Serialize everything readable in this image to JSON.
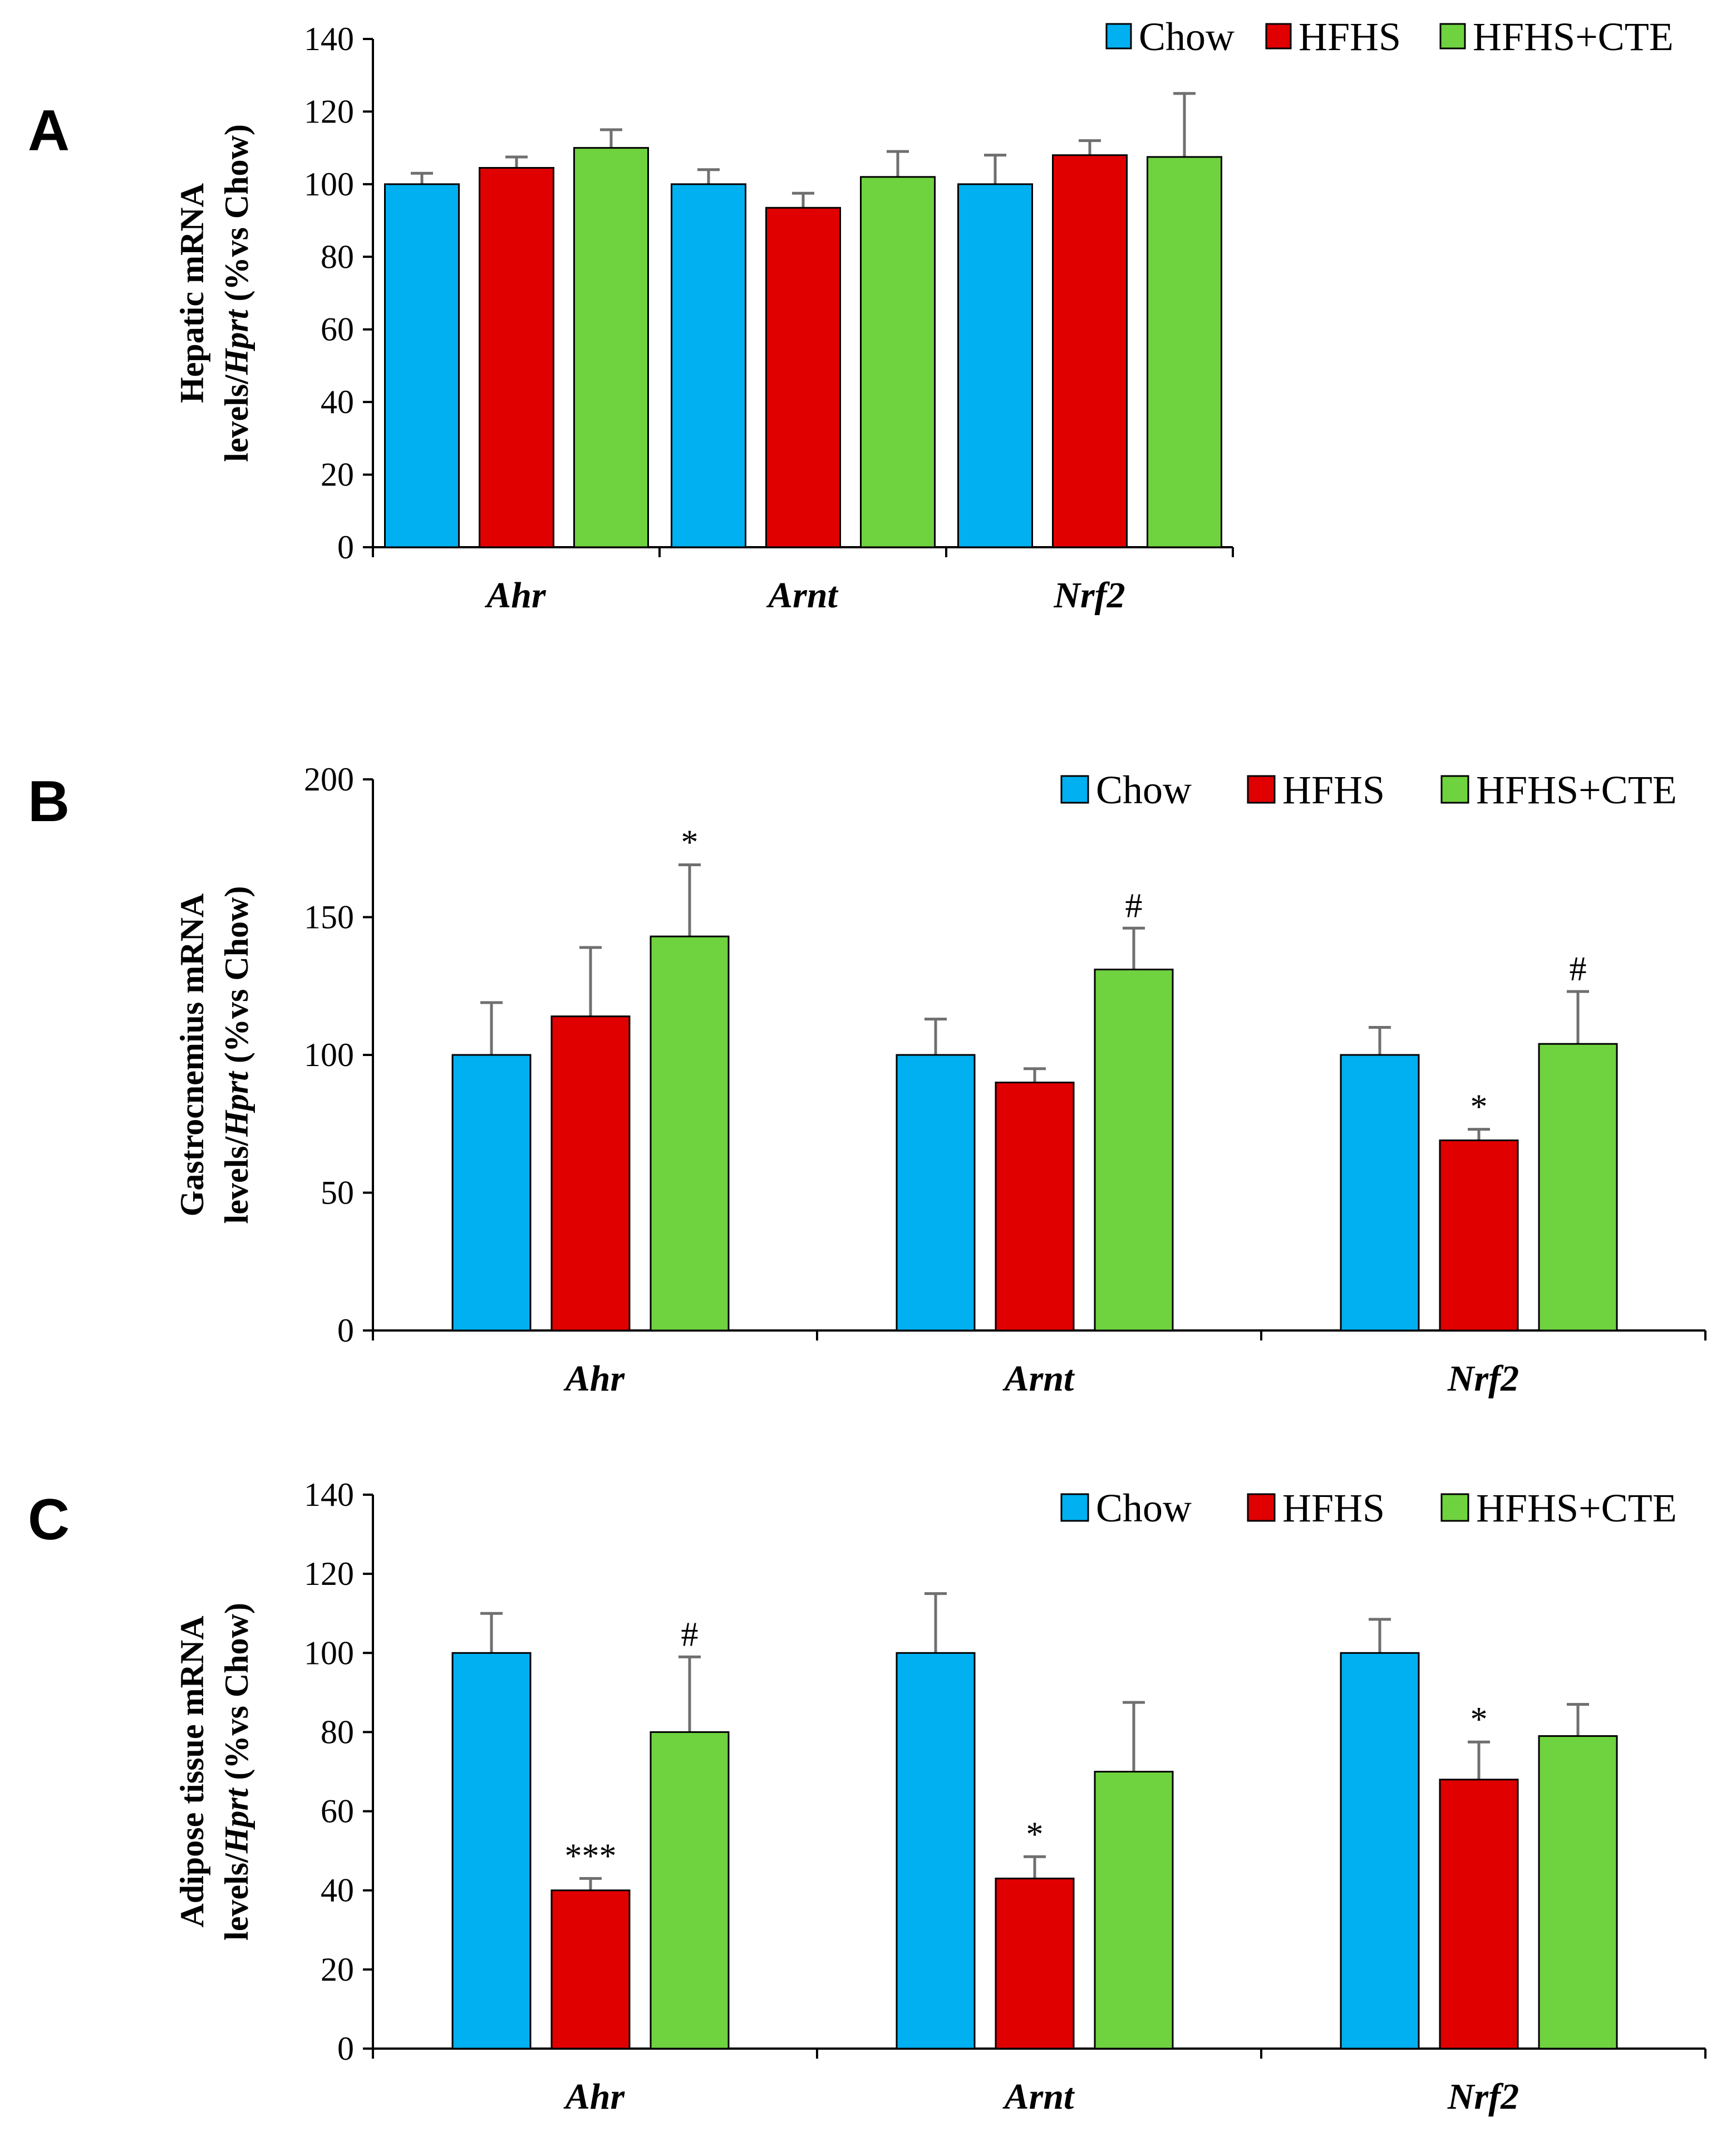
{
  "series_colors": {
    "Chow": "#00b0f0",
    "HFHS": "#e00000",
    "HFHS+CTE": "#6fd23f"
  },
  "chart_data": [
    {
      "panel": "A",
      "type": "bar",
      "categories": [
        "Ahr",
        "Arnt",
        "Nrf2"
      ],
      "legend": [
        "Chow",
        "HFHS",
        "HFHS+CTE"
      ],
      "ylabel_line1": "Hepatic mRNA",
      "ylabel_line2_prefix": "levels/",
      "ylabel_line2_gene": "Hprt",
      "ylabel_line2_suffix": " (%vs Chow)",
      "ylim": [
        0,
        140
      ],
      "yticks": [
        0,
        20,
        40,
        60,
        80,
        100,
        120,
        140
      ],
      "series": [
        {
          "name": "Chow",
          "values": [
            100,
            100,
            100
          ],
          "errors": [
            3,
            4,
            8
          ],
          "sig": [
            "",
            "",
            ""
          ]
        },
        {
          "name": "HFHS",
          "values": [
            104.5,
            93.5,
            108
          ],
          "errors": [
            3,
            4,
            4
          ],
          "sig": [
            "",
            "",
            ""
          ]
        },
        {
          "name": "HFHS+CTE",
          "values": [
            110,
            102,
            107.5
          ],
          "errors": [
            5,
            7,
            17.5
          ],
          "sig": [
            "",
            "",
            ""
          ]
        }
      ]
    },
    {
      "panel": "B",
      "type": "bar",
      "categories": [
        "Ahr",
        "Arnt",
        "Nrf2"
      ],
      "legend": [
        "Chow",
        "HFHS",
        "HFHS+CTE"
      ],
      "ylabel_line1": "Gastrocnemius mRNA",
      "ylabel_line2_prefix": "levels/",
      "ylabel_line2_gene": "Hprt",
      "ylabel_line2_suffix": " (%vs Chow)",
      "ylim": [
        0,
        200
      ],
      "yticks": [
        0,
        50,
        100,
        150,
        200
      ],
      "series": [
        {
          "name": "Chow",
          "values": [
            100,
            100,
            100
          ],
          "errors": [
            19,
            13,
            10
          ],
          "sig": [
            "",
            "",
            ""
          ]
        },
        {
          "name": "HFHS",
          "values": [
            114,
            90,
            69
          ],
          "errors": [
            25,
            5,
            4
          ],
          "sig": [
            "",
            "",
            "*"
          ]
        },
        {
          "name": "HFHS+CTE",
          "values": [
            143,
            131,
            104
          ],
          "errors": [
            26,
            15,
            19
          ],
          "sig": [
            "*",
            "#",
            "#"
          ]
        }
      ]
    },
    {
      "panel": "C",
      "type": "bar",
      "categories": [
        "Ahr",
        "Arnt",
        "Nrf2"
      ],
      "legend": [
        "Chow",
        "HFHS",
        "HFHS+CTE"
      ],
      "ylabel_line1": "Adipose tissue mRNA",
      "ylabel_line2_prefix": "levels/",
      "ylabel_line2_gene": "Hprt",
      "ylabel_line2_suffix": " (%vs Chow)",
      "ylim": [
        0,
        140
      ],
      "yticks": [
        0,
        20,
        40,
        60,
        80,
        100,
        120,
        140
      ],
      "series": [
        {
          "name": "Chow",
          "values": [
            100,
            100,
            100
          ],
          "errors": [
            10,
            15,
            8.5
          ],
          "sig": [
            "",
            "",
            ""
          ]
        },
        {
          "name": "HFHS",
          "values": [
            40,
            43,
            68
          ],
          "errors": [
            3,
            5.5,
            9.5
          ],
          "sig": [
            "***",
            "*",
            "*"
          ]
        },
        {
          "name": "HFHS+CTE",
          "values": [
            80,
            70,
            79
          ],
          "errors": [
            19,
            17.5,
            8
          ],
          "sig": [
            "#",
            "",
            ""
          ]
        }
      ]
    }
  ]
}
